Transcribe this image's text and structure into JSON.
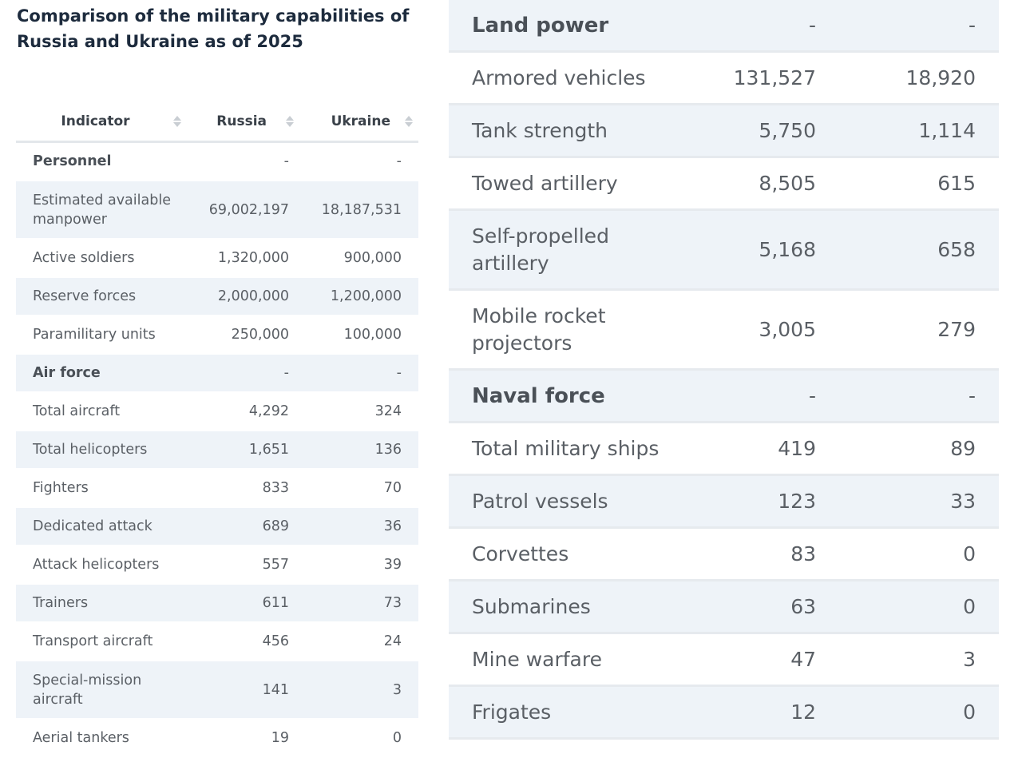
{
  "title": "Comparison of the military capabilities of Russia and Ukraine as of 2025",
  "left_table": {
    "headers": [
      "Indicator",
      "Russia",
      "Ukraine"
    ],
    "rows": [
      {
        "label": "Personnel",
        "russia": "-",
        "ukraine": "-",
        "section": true
      },
      {
        "label": "Estimated available manpower",
        "russia": "69,002,197",
        "ukraine": "18,187,531"
      },
      {
        "label": "Active soldiers",
        "russia": "1,320,000",
        "ukraine": "900,000"
      },
      {
        "label": "Reserve forces",
        "russia": "2,000,000",
        "ukraine": "1,200,000"
      },
      {
        "label": "Paramilitary units",
        "russia": "250,000",
        "ukraine": "100,000"
      },
      {
        "label": "Air force",
        "russia": "-",
        "ukraine": "-",
        "section": true
      },
      {
        "label": "Total aircraft",
        "russia": "4,292",
        "ukraine": "324"
      },
      {
        "label": "Total helicopters",
        "russia": "1,651",
        "ukraine": "136"
      },
      {
        "label": "Fighters",
        "russia": "833",
        "ukraine": "70"
      },
      {
        "label": "Dedicated attack",
        "russia": "689",
        "ukraine": "36"
      },
      {
        "label": "Attack helicopters",
        "russia": "557",
        "ukraine": "39"
      },
      {
        "label": "Trainers",
        "russia": "611",
        "ukraine": "73"
      },
      {
        "label": "Transport aircraft",
        "russia": "456",
        "ukraine": "24"
      },
      {
        "label": "Special-mission aircraft",
        "russia": "141",
        "ukraine": "3"
      },
      {
        "label": "Aerial tankers",
        "russia": "19",
        "ukraine": "0"
      }
    ]
  },
  "right_table": {
    "rows": [
      {
        "label": "Land power",
        "russia": "-",
        "ukraine": "-",
        "section": true
      },
      {
        "label": "Armored vehicles",
        "russia": "131,527",
        "ukraine": "18,920"
      },
      {
        "label": "Tank strength",
        "russia": "5,750",
        "ukraine": "1,114"
      },
      {
        "label": "Towed artillery",
        "russia": "8,505",
        "ukraine": "615"
      },
      {
        "label": "Self-propelled artillery",
        "russia": "5,168",
        "ukraine": "658"
      },
      {
        "label": "Mobile rocket projectors",
        "russia": "3,005",
        "ukraine": "279"
      },
      {
        "label": "Naval force",
        "russia": "-",
        "ukraine": "-",
        "section": true
      },
      {
        "label": "Total military ships",
        "russia": "419",
        "ukraine": "89"
      },
      {
        "label": "Patrol vessels",
        "russia": "123",
        "ukraine": "33"
      },
      {
        "label": "Corvettes",
        "russia": "83",
        "ukraine": "0"
      },
      {
        "label": "Submarines",
        "russia": "63",
        "ukraine": "0"
      },
      {
        "label": "Mine warfare",
        "russia": "47",
        "ukraine": "3"
      },
      {
        "label": "Frigates",
        "russia": "12",
        "ukraine": "0"
      }
    ]
  }
}
